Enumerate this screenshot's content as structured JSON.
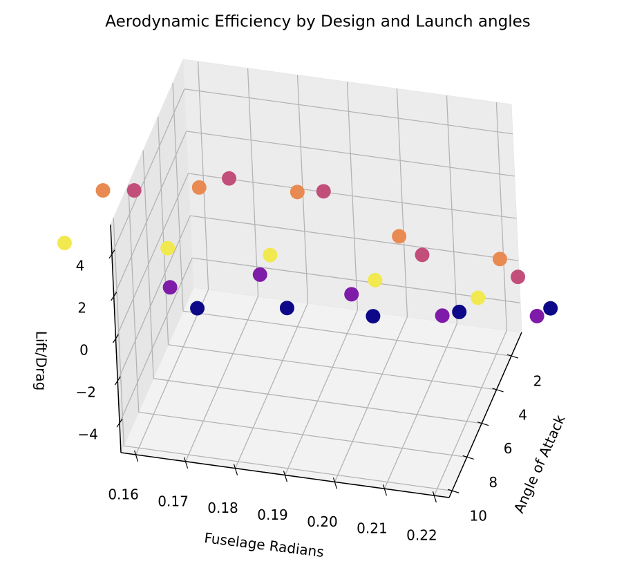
{
  "chart_data": {
    "type": "scatter3d",
    "title": "Aerodynamic Efficiency by Design and Launch angles",
    "x_label": "Fuselage Radians",
    "y_label": "Angle of Attack",
    "z_label": "Lift/Drag",
    "xlim": [
      0.157,
      0.223
    ],
    "ylim": [
      0.6,
      10.4
    ],
    "zlim": [
      -5.4,
      5.4
    ],
    "xticks": [
      0.16,
      0.17,
      0.18,
      0.19,
      {
        "value": 0.2,
        "label": "0.20"
      },
      0.21,
      0.22
    ],
    "yticks": [
      2,
      4,
      6,
      8,
      10
    ],
    "zticks": [
      {
        "value": -4,
        "label": "−4"
      },
      {
        "value": -2,
        "label": "−2"
      },
      0,
      2,
      4
    ],
    "grid": true,
    "series": [
      {
        "color": "#0d0887",
        "x": [
          0.168,
          0.185,
          0.202,
          0.218,
          0.235
        ],
        "y": [
          6.9,
          6.2,
          6.0,
          5.1,
          4.2
        ],
        "z": [
          -1,
          -1,
          -1,
          -1,
          -1
        ]
      },
      {
        "color": "#7e1ba8",
        "x": [
          0.164,
          0.18,
          0.199,
          0.218,
          0.236
        ],
        "y": [
          7.7,
          6.3,
          6.7,
          7.2,
          6.5
        ],
        "z": [
          0.5,
          0.5,
          0.5,
          0.5,
          0.5
        ]
      },
      {
        "color": "#c24f7a",
        "x": [
          0.153,
          0.17,
          0.189,
          0.213,
          0.233
        ],
        "y": [
          4.9,
          3.5,
          3.5,
          6.3,
          6.8
        ],
        "z": [
          2.5,
          2.5,
          2.5,
          2.5,
          2.5
        ]
      },
      {
        "color": "#e98a52",
        "x": [
          0.15,
          0.168,
          0.187,
          0.21,
          0.231
        ],
        "y": [
          6.9,
          6.0,
          5.5,
          7.2,
          7.7
        ],
        "z": [
          4,
          4,
          4,
          4,
          4
        ]
      },
      {
        "color": "#f1e94f",
        "x": [
          0.15,
          0.17,
          0.19,
          0.212,
          0.233
        ],
        "y": [
          11.9,
          11.4,
          11.0,
          11.6,
          11.8
        ],
        "z": [
          5.5,
          5.5,
          5.5,
          5.5,
          5.5
        ]
      }
    ]
  }
}
